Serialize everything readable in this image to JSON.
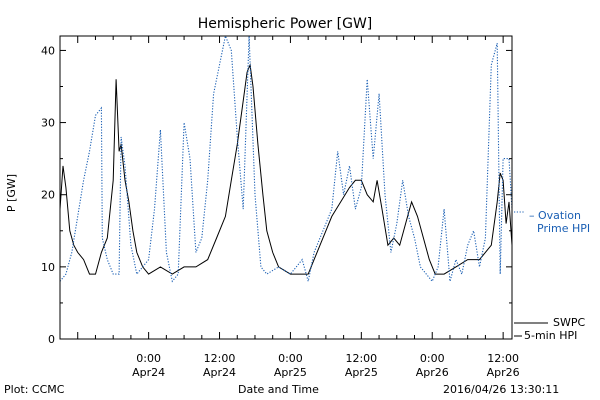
{
  "chart_data": {
    "type": "line",
    "title": "Hemispheric Power [GW]",
    "ylabel": "P [GW]",
    "xlabel": "Date and Time",
    "ylim": [
      0,
      42
    ],
    "xlim": [
      "2016-04-23 09:00",
      "2016-04-26 13:30"
    ],
    "y_ticks": [
      0,
      10,
      20,
      30,
      40
    ],
    "y_tick_labels": [
      "0",
      "10",
      "20",
      "30",
      "40"
    ],
    "x_ticks": [
      {
        "time": "2016-04-24 00:00",
        "line1": "0:00",
        "line2": "Apr24"
      },
      {
        "time": "2016-04-24 12:00",
        "line1": "12:00",
        "line2": "Apr24"
      },
      {
        "time": "2016-04-25 00:00",
        "line1": "0:00",
        "line2": "Apr25"
      },
      {
        "time": "2016-04-25 12:00",
        "line1": "12:00",
        "line2": "Apr25"
      },
      {
        "time": "2016-04-26 00:00",
        "line1": "0:00",
        "line2": "Apr26"
      },
      {
        "time": "2016-04-26 12:00",
        "line1": "12:00",
        "line2": "Apr26"
      }
    ],
    "x_minor_step_hours": 3,
    "grid": false,
    "legend": [
      {
        "series": "ovation",
        "line1": "– Ovation",
        "line2": "Prime HPI",
        "color": "#1a5fb4"
      },
      {
        "series": "swpc",
        "line1": "SWPC",
        "line2": "5-min HPI",
        "color": "#000000"
      }
    ],
    "series": [
      {
        "id": "swpc",
        "color": "#000000",
        "style": "solid",
        "points": [
          [
            "2016-04-23 09:00",
            18
          ],
          [
            "2016-04-23 09:30",
            24
          ],
          [
            "2016-04-23 10:00",
            21
          ],
          [
            "2016-04-23 10:40",
            15
          ],
          [
            "2016-04-23 11:20",
            13
          ],
          [
            "2016-04-23 12:00",
            12
          ],
          [
            "2016-04-23 13:00",
            11
          ],
          [
            "2016-04-23 14:00",
            9
          ],
          [
            "2016-04-23 15:00",
            9
          ],
          [
            "2016-04-23 16:00",
            12
          ],
          [
            "2016-04-23 17:00",
            14
          ],
          [
            "2016-04-23 18:00",
            22
          ],
          [
            "2016-04-23 18:30",
            36
          ],
          [
            "2016-04-23 19:00",
            26
          ],
          [
            "2016-04-23 19:20",
            27
          ],
          [
            "2016-04-23 20:00",
            22
          ],
          [
            "2016-04-23 20:40",
            19
          ],
          [
            "2016-04-23 21:20",
            15
          ],
          [
            "2016-04-23 22:00",
            12
          ],
          [
            "2016-04-23 23:00",
            10
          ],
          [
            "2016-04-24 00:00",
            9
          ],
          [
            "2016-04-24 02:00",
            10
          ],
          [
            "2016-04-24 04:00",
            9
          ],
          [
            "2016-04-24 06:00",
            10
          ],
          [
            "2016-04-24 08:00",
            10
          ],
          [
            "2016-04-24 10:00",
            11
          ],
          [
            "2016-04-24 11:30",
            14
          ],
          [
            "2016-04-24 13:00",
            17
          ],
          [
            "2016-04-24 14:00",
            22
          ],
          [
            "2016-04-24 15:00",
            27
          ],
          [
            "2016-04-24 16:00",
            33
          ],
          [
            "2016-04-24 16:40",
            37
          ],
          [
            "2016-04-24 17:10",
            38
          ],
          [
            "2016-04-24 17:40",
            35
          ],
          [
            "2016-04-24 18:30",
            27
          ],
          [
            "2016-04-24 19:20",
            20
          ],
          [
            "2016-04-24 20:00",
            15
          ],
          [
            "2016-04-24 21:00",
            12
          ],
          [
            "2016-04-24 22:00",
            10
          ],
          [
            "2016-04-25 00:00",
            9
          ],
          [
            "2016-04-25 02:00",
            9
          ],
          [
            "2016-04-25 03:00",
            9
          ],
          [
            "2016-04-25 04:00",
            11
          ],
          [
            "2016-04-25 05:00",
            13
          ],
          [
            "2016-04-25 06:00",
            15
          ],
          [
            "2016-04-25 07:00",
            17
          ],
          [
            "2016-04-25 08:30",
            19
          ],
          [
            "2016-04-25 10:00",
            21
          ],
          [
            "2016-04-25 11:00",
            22
          ],
          [
            "2016-04-25 12:00",
            22
          ],
          [
            "2016-04-25 13:00",
            20
          ],
          [
            "2016-04-25 14:00",
            19
          ],
          [
            "2016-04-25 14:40",
            22
          ],
          [
            "2016-04-25 15:30",
            18
          ],
          [
            "2016-04-25 16:30",
            13
          ],
          [
            "2016-04-25 17:30",
            14
          ],
          [
            "2016-04-25 18:30",
            13
          ],
          [
            "2016-04-25 19:30",
            16
          ],
          [
            "2016-04-25 20:30",
            19
          ],
          [
            "2016-04-25 21:30",
            17
          ],
          [
            "2016-04-25 22:30",
            14
          ],
          [
            "2016-04-25 23:30",
            11
          ],
          [
            "2016-04-26 00:30",
            9
          ],
          [
            "2016-04-26 02:00",
            9
          ],
          [
            "2016-04-26 04:00",
            10
          ],
          [
            "2016-04-26 06:00",
            11
          ],
          [
            "2016-04-26 08:00",
            11
          ],
          [
            "2016-04-26 10:00",
            13
          ],
          [
            "2016-04-26 11:00",
            19
          ],
          [
            "2016-04-26 11:30",
            23
          ],
          [
            "2016-04-26 12:00",
            22
          ],
          [
            "2016-04-26 12:30",
            16
          ],
          [
            "2016-04-26 13:00",
            19
          ],
          [
            "2016-04-26 13:30",
            13
          ]
        ]
      },
      {
        "id": "ovation",
        "color": "#1a5fb4",
        "style": "dotted",
        "points": [
          [
            "2016-04-23 09:00",
            8
          ],
          [
            "2016-04-23 10:00",
            9
          ],
          [
            "2016-04-23 11:00",
            12
          ],
          [
            "2016-04-23 12:00",
            17
          ],
          [
            "2016-04-23 13:00",
            22
          ],
          [
            "2016-04-23 14:00",
            26
          ],
          [
            "2016-04-23 15:00",
            31
          ],
          [
            "2016-04-23 16:00",
            32
          ],
          [
            "2016-04-23 16:10",
            14
          ],
          [
            "2016-04-23 17:00",
            11
          ],
          [
            "2016-04-23 18:00",
            9
          ],
          [
            "2016-04-23 19:00",
            9
          ],
          [
            "2016-04-23 19:20",
            28
          ],
          [
            "2016-04-23 20:00",
            24
          ],
          [
            "2016-04-23 21:00",
            13
          ],
          [
            "2016-04-23 22:00",
            9
          ],
          [
            "2016-04-23 23:00",
            10
          ],
          [
            "2016-04-24 00:00",
            11
          ],
          [
            "2016-04-24 01:00",
            18
          ],
          [
            "2016-04-24 02:00",
            29
          ],
          [
            "2016-04-24 03:00",
            12
          ],
          [
            "2016-04-24 04:00",
            8
          ],
          [
            "2016-04-24 05:00",
            9
          ],
          [
            "2016-04-24 06:00",
            30
          ],
          [
            "2016-04-24 07:00",
            25
          ],
          [
            "2016-04-24 08:00",
            12
          ],
          [
            "2016-04-24 09:00",
            14
          ],
          [
            "2016-04-24 10:00",
            22
          ],
          [
            "2016-04-24 11:00",
            34
          ],
          [
            "2016-04-24 12:00",
            38
          ],
          [
            "2016-04-24 13:00",
            42
          ],
          [
            "2016-04-24 14:00",
            40
          ],
          [
            "2016-04-24 15:00",
            28
          ],
          [
            "2016-04-24 16:00",
            18
          ],
          [
            "2016-04-24 17:00",
            42
          ],
          [
            "2016-04-24 18:00",
            20
          ],
          [
            "2016-04-24 19:00",
            10
          ],
          [
            "2016-04-24 20:00",
            9
          ],
          [
            "2016-04-24 22:00",
            10
          ],
          [
            "2016-04-25 00:00",
            9
          ],
          [
            "2016-04-25 01:00",
            10
          ],
          [
            "2016-04-25 02:00",
            11
          ],
          [
            "2016-04-25 03:00",
            8
          ],
          [
            "2016-04-25 04:00",
            12
          ],
          [
            "2016-04-25 05:00",
            14
          ],
          [
            "2016-04-25 06:00",
            16
          ],
          [
            "2016-04-25 07:00",
            18
          ],
          [
            "2016-04-25 08:00",
            26
          ],
          [
            "2016-04-25 09:00",
            20
          ],
          [
            "2016-04-25 10:00",
            24
          ],
          [
            "2016-04-25 11:00",
            18
          ],
          [
            "2016-04-25 12:00",
            21
          ],
          [
            "2016-04-25 13:00",
            36
          ],
          [
            "2016-04-25 14:00",
            25
          ],
          [
            "2016-04-25 15:00",
            34
          ],
          [
            "2016-04-25 16:00",
            20
          ],
          [
            "2016-04-25 17:00",
            12
          ],
          [
            "2016-04-25 18:00",
            16
          ],
          [
            "2016-04-25 19:00",
            22
          ],
          [
            "2016-04-25 20:00",
            17
          ],
          [
            "2016-04-25 21:00",
            14
          ],
          [
            "2016-04-25 22:00",
            10
          ],
          [
            "2016-04-25 23:00",
            9
          ],
          [
            "2016-04-26 00:00",
            8
          ],
          [
            "2016-04-26 01:00",
            10
          ],
          [
            "2016-04-26 02:00",
            18
          ],
          [
            "2016-04-26 03:00",
            8
          ],
          [
            "2016-04-26 04:00",
            11
          ],
          [
            "2016-04-26 05:00",
            9
          ],
          [
            "2016-04-26 06:00",
            13
          ],
          [
            "2016-04-26 07:00",
            15
          ],
          [
            "2016-04-26 08:00",
            10
          ],
          [
            "2016-04-26 09:00",
            14
          ],
          [
            "2016-04-26 10:00",
            38
          ],
          [
            "2016-04-26 11:00",
            41
          ],
          [
            "2016-04-26 11:30",
            9
          ],
          [
            "2016-04-26 12:00",
            25
          ],
          [
            "2016-04-26 13:00",
            25
          ],
          [
            "2016-04-26 13:30",
            18
          ]
        ]
      }
    ]
  },
  "footer": {
    "left": "Plot: CCMC",
    "center": "Date and Time",
    "right": "2016/04/26 13:30:11"
  }
}
